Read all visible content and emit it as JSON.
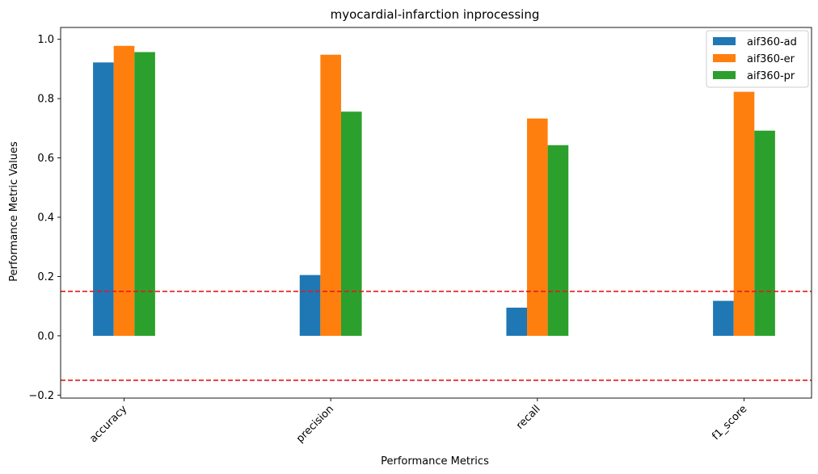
{
  "chart_data": {
    "type": "bar",
    "title": "myocardial-infarction inprocessing",
    "xlabel": "Performance Metrics",
    "ylabel": "Performance Metric Values",
    "categories": [
      "accuracy",
      "precision",
      "recall",
      "f1_score"
    ],
    "series": [
      {
        "name": "aif360-ad",
        "color": "#1f77b4",
        "values": [
          0.922,
          0.205,
          0.095,
          0.118
        ]
      },
      {
        "name": "aif360-er",
        "color": "#ff7f0e",
        "values": [
          0.978,
          0.948,
          0.733,
          0.823
        ]
      },
      {
        "name": "aif360-pr",
        "color": "#2ca02c",
        "values": [
          0.957,
          0.756,
          0.643,
          0.692
        ]
      }
    ],
    "ylim": [
      -0.21,
      1.04
    ],
    "yticks": [
      -0.2,
      0.0,
      0.2,
      0.4,
      0.6,
      0.8,
      1.0
    ],
    "ytick_labels": [
      "−0.2",
      "0.0",
      "0.2",
      "0.4",
      "0.6",
      "0.8",
      "1.0"
    ],
    "reference_lines": [
      {
        "y": 0.15,
        "color": "#e41a1c",
        "style": "dashed"
      },
      {
        "y": -0.15,
        "color": "#e41a1c",
        "style": "dashed"
      }
    ],
    "grid": false,
    "legend_position": "top-right"
  }
}
